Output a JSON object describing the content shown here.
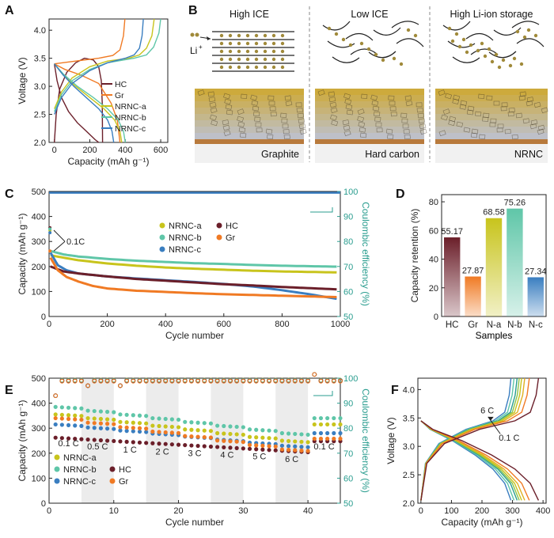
{
  "figure": {
    "panel_labels": [
      "A",
      "B",
      "C",
      "D",
      "E",
      "F"
    ]
  },
  "panel_b": {
    "columns": [
      {
        "heading": "High ICE",
        "caption": "Graphite",
        "accent": "#d9b84a"
      },
      {
        "heading": "Low ICE",
        "caption": "Hard carbon",
        "accent": "#d9b84a"
      },
      {
        "heading": "High Li-ion storage",
        "caption": "NRNC",
        "accent": "#d9b84a"
      }
    ],
    "li_label": "Li",
    "li_superscript": "+"
  },
  "chart_data": [
    {
      "panel": "A",
      "type": "line",
      "xlabel": "Capacity (mAh g⁻¹)",
      "ylabel": "Voltage (V)",
      "xlim": [
        -30,
        640
      ],
      "ylim": [
        2.0,
        4.2
      ],
      "xticks": [
        0,
        200,
        400,
        600
      ],
      "yticks": [
        2.0,
        2.5,
        3.0,
        3.5,
        4.0
      ],
      "legend": "middle-right",
      "series": [
        {
          "name": "HC",
          "color": "#6b1f2a",
          "charge": [
            [
              0,
              2.0
            ],
            [
              10,
              2.5
            ],
            [
              30,
              2.95
            ],
            [
              70,
              3.25
            ],
            [
              120,
              3.42
            ],
            [
              170,
              3.5
            ],
            [
              220,
              3.47
            ],
            [
              250,
              3.35
            ],
            [
              265,
              3.1
            ],
            [
              270,
              2.7
            ],
            [
              272,
              2.0
            ]
          ],
          "discharge": [
            [
              0,
              3.4
            ],
            [
              15,
              3.1
            ],
            [
              40,
              2.8
            ],
            [
              80,
              2.55
            ],
            [
              130,
              2.35
            ],
            [
              180,
              2.2
            ],
            [
              230,
              2.05
            ],
            [
              250,
              2.0
            ]
          ]
        },
        {
          "name": "Gr",
          "color": "#f07a24",
          "charge": [
            [
              0,
              3.4
            ],
            [
              120,
              3.45
            ],
            [
              250,
              3.5
            ],
            [
              330,
              3.55
            ],
            [
              370,
              3.65
            ],
            [
              390,
              3.9
            ],
            [
              398,
              4.2
            ]
          ],
          "discharge": [
            [
              0,
              3.4
            ],
            [
              60,
              3.3
            ],
            [
              150,
              3.2
            ],
            [
              250,
              3.05
            ],
            [
              320,
              2.7
            ],
            [
              355,
              2.4
            ],
            [
              370,
              2.0
            ]
          ]
        },
        {
          "name": "NRNC-a",
          "color": "#c8c41c",
          "charge": [
            [
              0,
              2.6
            ],
            [
              40,
              2.9
            ],
            [
              100,
              3.15
            ],
            [
              200,
              3.35
            ],
            [
              300,
              3.45
            ],
            [
              420,
              3.5
            ],
            [
              480,
              3.56
            ],
            [
              520,
              3.68
            ],
            [
              550,
              3.9
            ],
            [
              563,
              4.2
            ]
          ],
          "discharge": [
            [
              0,
              3.4
            ],
            [
              50,
              3.2
            ],
            [
              120,
              3.0
            ],
            [
              200,
              2.8
            ],
            [
              280,
              2.6
            ],
            [
              340,
              2.4
            ],
            [
              370,
              2.2
            ],
            [
              380,
              2.0
            ]
          ]
        },
        {
          "name": "NRNC-b",
          "color": "#5fc6a8",
          "charge": [
            [
              0,
              2.55
            ],
            [
              40,
              2.85
            ],
            [
              100,
              3.1
            ],
            [
              200,
              3.3
            ],
            [
              300,
              3.42
            ],
            [
              450,
              3.5
            ],
            [
              520,
              3.56
            ],
            [
              560,
              3.7
            ],
            [
              590,
              3.95
            ],
            [
              600,
              4.2
            ]
          ],
          "discharge": [
            [
              0,
              3.4
            ],
            [
              50,
              3.22
            ],
            [
              130,
              3.0
            ],
            [
              220,
              2.8
            ],
            [
              300,
              2.6
            ],
            [
              360,
              2.4
            ],
            [
              390,
              2.2
            ],
            [
              400,
              2.0
            ]
          ]
        },
        {
          "name": "NRNC-c",
          "color": "#3a7ec0",
          "charge": [
            [
              0,
              2.5
            ],
            [
              40,
              2.8
            ],
            [
              100,
              3.05
            ],
            [
              200,
              3.28
            ],
            [
              300,
              3.42
            ],
            [
              400,
              3.5
            ],
            [
              450,
              3.56
            ],
            [
              480,
              3.68
            ],
            [
              495,
              3.9
            ],
            [
              502,
              4.2
            ]
          ],
          "discharge": [
            [
              0,
              3.4
            ],
            [
              50,
              3.2
            ],
            [
              110,
              3.0
            ],
            [
              180,
              2.8
            ],
            [
              250,
              2.6
            ],
            [
              300,
              2.4
            ],
            [
              325,
              2.2
            ],
            [
              335,
              2.0
            ]
          ]
        }
      ]
    },
    {
      "panel": "C",
      "type": "scatter",
      "xlabel": "Cycle number",
      "ylabel": "Capacity (mAh g⁻¹)",
      "y2label": "Coulombic efficiency (%)",
      "xlim": [
        0,
        1000
      ],
      "ylim": [
        0,
        500
      ],
      "y2lim": [
        50,
        100
      ],
      "xticks": [
        0,
        200,
        400,
        600,
        800,
        1000
      ],
      "yticks": [
        0,
        100,
        200,
        300,
        400,
        500
      ],
      "y2ticks": [
        50,
        60,
        70,
        80,
        90,
        100
      ],
      "annotation": "0.1C",
      "legend": "upper-middle",
      "series": [
        {
          "name": "NRNC-a",
          "color": "#c8c41c",
          "points": [
            [
              5,
              245
            ],
            [
              50,
              235
            ],
            [
              100,
              225
            ],
            [
              200,
              212
            ],
            [
              300,
              203
            ],
            [
              400,
              196
            ],
            [
              500,
              191
            ],
            [
              600,
              187
            ],
            [
              700,
              183
            ],
            [
              800,
              180
            ],
            [
              900,
              178
            ],
            [
              1000,
              176
            ]
          ]
        },
        {
          "name": "NRNC-b",
          "color": "#5fc6a8",
          "points": [
            [
              5,
              262
            ],
            [
              50,
              248
            ],
            [
              100,
              240
            ],
            [
              200,
              230
            ],
            [
              300,
              223
            ],
            [
              400,
              218
            ],
            [
              500,
              213
            ],
            [
              600,
              210
            ],
            [
              700,
              206
            ],
            [
              800,
              203
            ],
            [
              900,
              201
            ],
            [
              1000,
              199
            ]
          ]
        },
        {
          "name": "NRNC-c",
          "color": "#3a7ec0",
          "points": [
            [
              5,
              255
            ],
            [
              30,
              205
            ],
            [
              60,
              185
            ],
            [
              100,
              172
            ],
            [
              200,
              160
            ],
            [
              300,
              152
            ],
            [
              400,
              145
            ],
            [
              500,
              138
            ],
            [
              600,
              130
            ],
            [
              700,
              120
            ],
            [
              800,
              105
            ],
            [
              900,
              88
            ],
            [
              1000,
              68
            ]
          ]
        },
        {
          "name": "HC",
          "color": "#6b1f2a",
          "points": [
            [
              5,
              200
            ],
            [
              50,
              180
            ],
            [
              100,
              172
            ],
            [
              200,
              160
            ],
            [
              300,
              150
            ],
            [
              400,
              143
            ],
            [
              500,
              136
            ],
            [
              600,
              129
            ],
            [
              700,
              124
            ],
            [
              800,
              118
            ],
            [
              900,
              113
            ],
            [
              1000,
              108
            ]
          ]
        },
        {
          "name": "Gr",
          "color": "#f07a24",
          "points": [
            [
              5,
              235
            ],
            [
              30,
              185
            ],
            [
              60,
              158
            ],
            [
              100,
              140
            ],
            [
              150,
              122
            ],
            [
              200,
              112
            ],
            [
              300,
              103
            ],
            [
              400,
              98
            ],
            [
              500,
              93
            ],
            [
              600,
              89
            ],
            [
              700,
              86
            ],
            [
              800,
              83
            ],
            [
              900,
              80
            ],
            [
              1000,
              77
            ]
          ]
        }
      ],
      "initial_points": [
        [
          "#6b1f2a",
          3,
          355
        ],
        [
          "#c8c41c",
          3,
          345
        ],
        [
          "#5fc6a8",
          3,
          350
        ],
        [
          "#3a7ec0",
          3,
          335
        ],
        [
          "#f07a24",
          3,
          262
        ]
      ],
      "ce_line": {
        "value": 99.5,
        "color": "#3a7ec0"
      }
    },
    {
      "panel": "D",
      "type": "bar",
      "xlabel": "Samples",
      "ylabel": "Capacity retention (%)",
      "ylim": [
        0,
        85
      ],
      "yticks": [
        0,
        20,
        40,
        60,
        80
      ],
      "categories": [
        "HC",
        "Gr",
        "N-a",
        "N-b",
        "N-c"
      ],
      "values": [
        55.17,
        27.87,
        68.58,
        75.26,
        27.34
      ],
      "value_labels": [
        "55.17",
        "27.87",
        "68.58",
        "75.26",
        "27.34"
      ],
      "colors": [
        "#6b1f2a",
        "#f07a24",
        "#c8c41c",
        "#5fc6a8",
        "#3a7ec0"
      ]
    },
    {
      "panel": "E",
      "type": "scatter",
      "xlabel": "Cycle number",
      "ylabel": "Capacity (mAh g⁻¹)",
      "y2label": "Coulombic efficiency (%)",
      "xlim": [
        0,
        45
      ],
      "ylim": [
        0,
        500
      ],
      "y2lim": [
        50,
        100
      ],
      "xticks": [
        0,
        10,
        20,
        30,
        40
      ],
      "yticks": [
        0,
        100,
        200,
        300,
        400,
        500
      ],
      "y2ticks": [
        50,
        60,
        70,
        80,
        90,
        100
      ],
      "rate_labels": [
        {
          "text": "0.1 C",
          "x": 3,
          "y": 228
        },
        {
          "text": "0.5 C",
          "x": 7.5,
          "y": 215
        },
        {
          "text": "1 C",
          "x": 12.5,
          "y": 202
        },
        {
          "text": "2 C",
          "x": 17.5,
          "y": 195
        },
        {
          "text": "3 C",
          "x": 22.5,
          "y": 188
        },
        {
          "text": "4 C",
          "x": 27.5,
          "y": 182
        },
        {
          "text": "5 C",
          "x": 32.5,
          "y": 175
        },
        {
          "text": "6 C",
          "x": 37.5,
          "y": 165
        },
        {
          "text": "0.1 C",
          "x": 42.5,
          "y": 215
        }
      ],
      "shaded_ranges": [
        [
          5,
          10
        ],
        [
          15,
          20
        ],
        [
          25,
          30
        ],
        [
          35,
          40
        ]
      ],
      "legend": "lower-left",
      "series": [
        {
          "name": "NRNC-a",
          "color": "#c8c41c",
          "start": 355,
          "end": 250,
          "recover": 315
        },
        {
          "name": "NRNC-b",
          "color": "#5fc6a8",
          "start": 385,
          "end": 280,
          "recover": 340
        },
        {
          "name": "NRNC-c",
          "color": "#3a7ec0",
          "start": 315,
          "end": 230,
          "recover": 280
        },
        {
          "name": "HC",
          "color": "#6b1f2a",
          "start": 262,
          "end": 210,
          "recover": 248
        },
        {
          "name": "Gr",
          "color": "#f07a24",
          "start": 340,
          "end": 215,
          "recover": 258
        }
      ]
    },
    {
      "panel": "F",
      "type": "line",
      "xlabel": "Capacity (mAh g⁻¹)",
      "ylabel": "Voltage (V)",
      "xlim": [
        -10,
        410
      ],
      "ylim": [
        2.0,
        4.2
      ],
      "xticks": [
        0,
        100,
        200,
        300,
        400
      ],
      "yticks": [
        2.0,
        2.5,
        3.0,
        3.5,
        4.0
      ],
      "label_high": "6 C",
      "label_low": "0.1 C",
      "curves": [
        {
          "color": "#3a7ec0",
          "cap": 295
        },
        {
          "color": "#5fc6a8",
          "cap": 305
        },
        {
          "color": "#2a9d8f",
          "cap": 315
        },
        {
          "color": "#8bc34a",
          "cap": 322
        },
        {
          "color": "#c8c41c",
          "cap": 330
        },
        {
          "color": "#e0b020",
          "cap": 340
        },
        {
          "color": "#f07a24",
          "cap": 355
        },
        {
          "color": "#6b1f2a",
          "cap": 385
        }
      ]
    }
  ]
}
